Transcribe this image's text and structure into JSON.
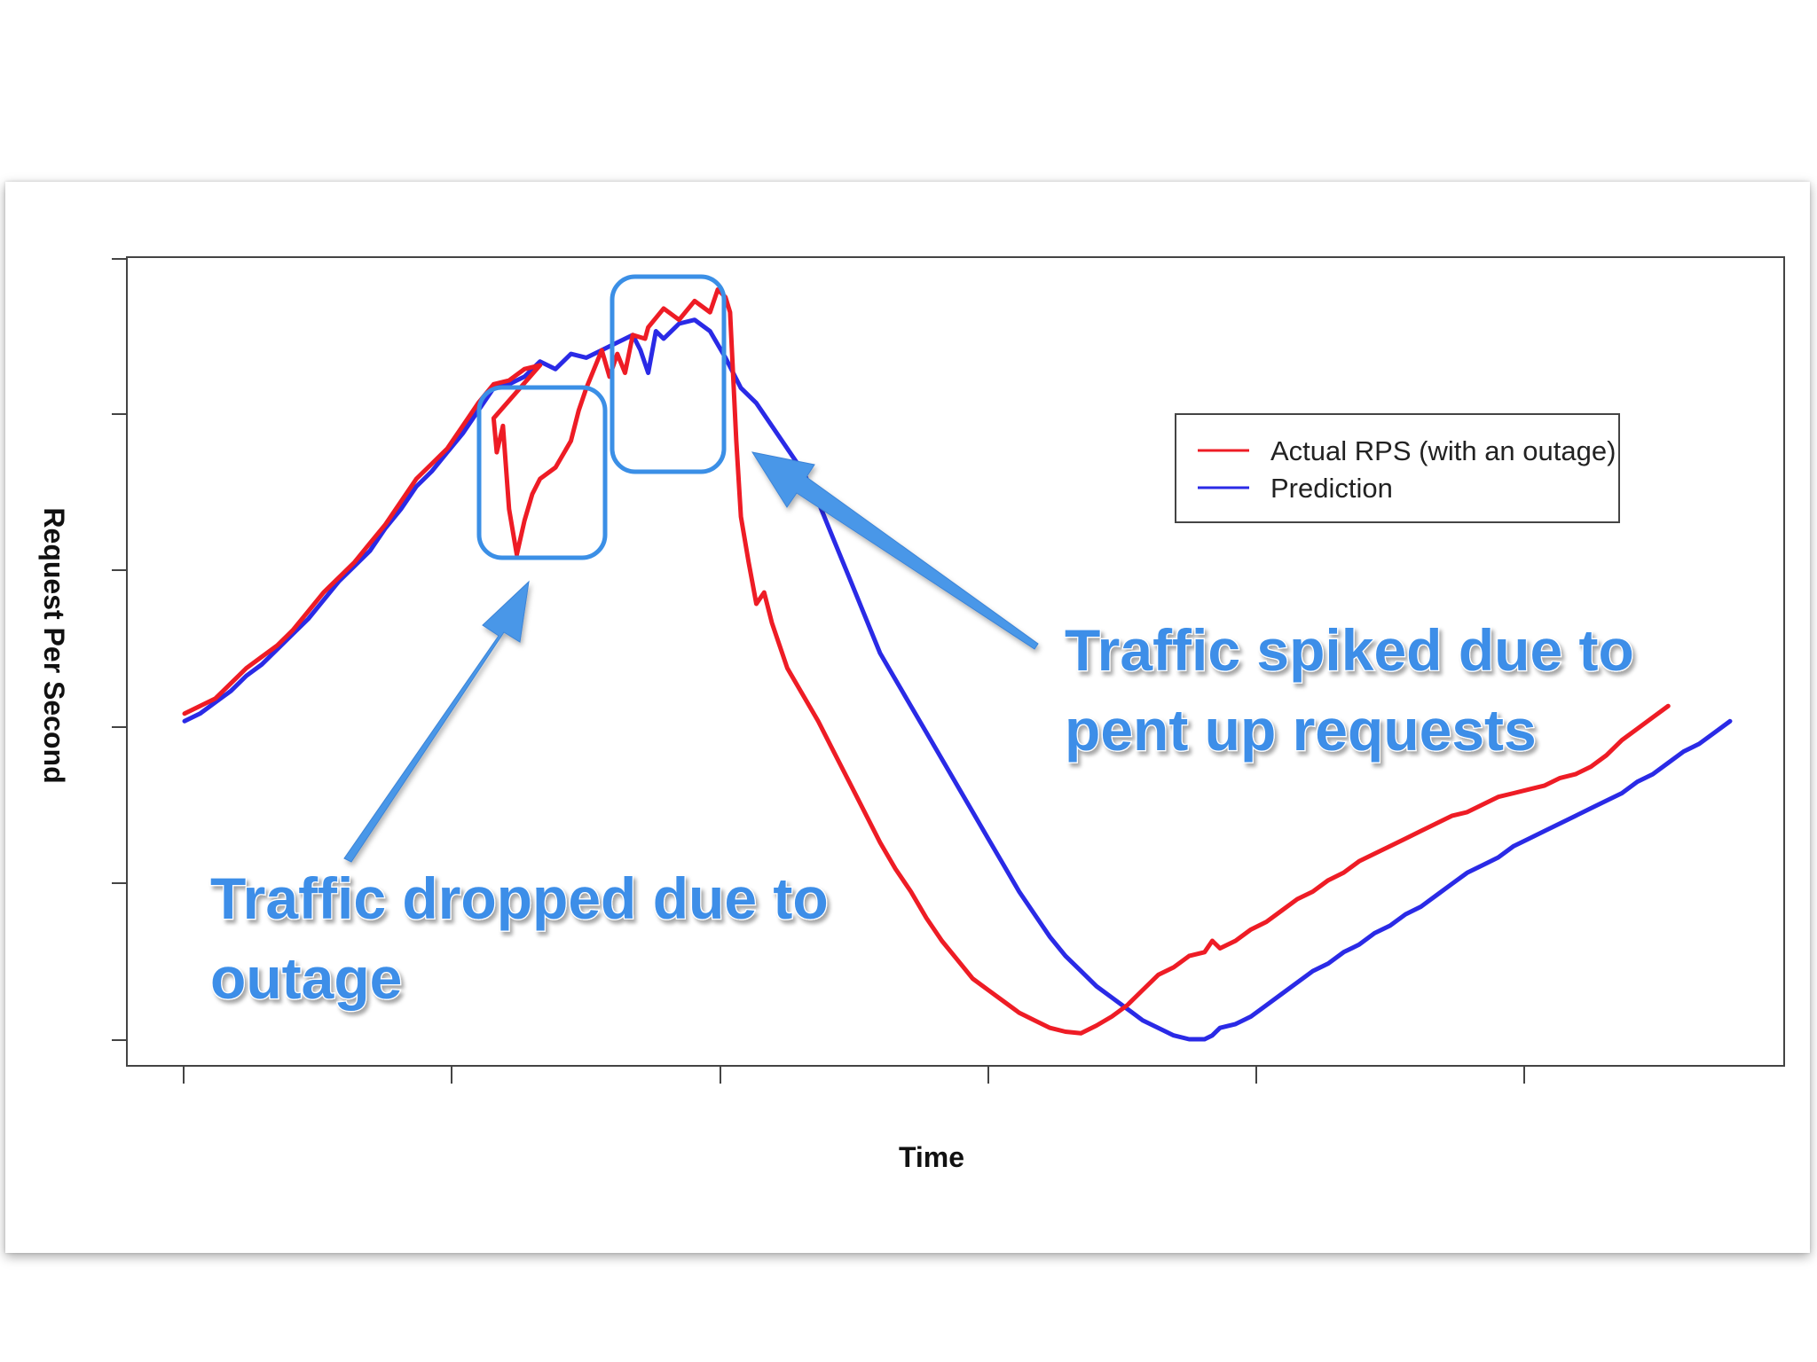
{
  "colors": {
    "actual": "#ee1c25",
    "prediction": "#2a2ae6",
    "callout": "#3b8fe6",
    "callout_text": "#3d8ee8",
    "axis": "#333333"
  },
  "chart_data": {
    "type": "line",
    "title": "",
    "xlabel": "Time",
    "ylabel": "Request Per Second",
    "xlim": [
      0,
      100
    ],
    "ylim": [
      0,
      100
    ],
    "x_ticks": [
      "",
      "",
      "",
      "",
      "",
      ""
    ],
    "y_ticks": [
      "",
      "",
      "",
      "",
      "",
      ""
    ],
    "grid": false,
    "legend": {
      "placement": "top-right"
    },
    "series": [
      {
        "name": "Actual RPS (with an outage)",
        "color": "#ee1c25",
        "points": [
          [
            0,
            43
          ],
          [
            1,
            44
          ],
          [
            2,
            45
          ],
          [
            3,
            47
          ],
          [
            4,
            49
          ],
          [
            5,
            50.5
          ],
          [
            6,
            52
          ],
          [
            7,
            54
          ],
          [
            8,
            56.5
          ],
          [
            9,
            59
          ],
          [
            10,
            61
          ],
          [
            11,
            63
          ],
          [
            12,
            65.5
          ],
          [
            13,
            68
          ],
          [
            14,
            71
          ],
          [
            15,
            74
          ],
          [
            16,
            76
          ],
          [
            17,
            78
          ],
          [
            18,
            81
          ],
          [
            19,
            84
          ],
          [
            20,
            86.5
          ],
          [
            21,
            87
          ],
          [
            22,
            88.5
          ],
          [
            23,
            89
          ],
          [
            20,
            82
          ],
          [
            20.2,
            77.5
          ],
          [
            20.6,
            81
          ],
          [
            21,
            70
          ],
          [
            21.5,
            64
          ],
          [
            22,
            68.5
          ],
          [
            22.5,
            72
          ],
          [
            23,
            74
          ],
          [
            24,
            75.5
          ],
          [
            25,
            79
          ],
          [
            25.5,
            83
          ],
          [
            26,
            86
          ],
          [
            26.5,
            88.5
          ],
          [
            27,
            91
          ],
          [
            27.5,
            87.5
          ],
          [
            28,
            90.5
          ],
          [
            28.5,
            88
          ],
          [
            29,
            93
          ],
          [
            29.8,
            92.5
          ],
          [
            30,
            94
          ],
          [
            31,
            96.5
          ],
          [
            32,
            95
          ],
          [
            33,
            97.5
          ],
          [
            34,
            96
          ],
          [
            34.5,
            99
          ],
          [
            35,
            98
          ],
          [
            35.3,
            96
          ],
          [
            35.7,
            79
          ],
          [
            36,
            69
          ],
          [
            36.5,
            63
          ],
          [
            37,
            57.5
          ],
          [
            37.5,
            59
          ],
          [
            38,
            55
          ],
          [
            38.5,
            52
          ],
          [
            39,
            49
          ],
          [
            40,
            45.5
          ],
          [
            41,
            42
          ],
          [
            42,
            38
          ],
          [
            43,
            34
          ],
          [
            44,
            30
          ],
          [
            45,
            26
          ],
          [
            46,
            22.5
          ],
          [
            47,
            19.5
          ],
          [
            48,
            16
          ],
          [
            49,
            13
          ],
          [
            50,
            10.5
          ],
          [
            51,
            8
          ],
          [
            52,
            6.5
          ],
          [
            53,
            5
          ],
          [
            54,
            3.5
          ],
          [
            55,
            2.5
          ],
          [
            56,
            1.5
          ],
          [
            57,
            1
          ],
          [
            58,
            0.8
          ],
          [
            59,
            1.8
          ],
          [
            60,
            3
          ],
          [
            61,
            4.5
          ],
          [
            62,
            6.5
          ],
          [
            63,
            8.5
          ],
          [
            64,
            9.5
          ],
          [
            65,
            11
          ],
          [
            66,
            11.5
          ],
          [
            66.5,
            13
          ],
          [
            67,
            12
          ],
          [
            68,
            13
          ],
          [
            69,
            14.5
          ],
          [
            70,
            15.5
          ],
          [
            71,
            17
          ],
          [
            72,
            18.5
          ],
          [
            73,
            19.5
          ],
          [
            74,
            21
          ],
          [
            75,
            22
          ],
          [
            76,
            23.5
          ],
          [
            77,
            24.5
          ],
          [
            78,
            25.5
          ],
          [
            79,
            26.5
          ],
          [
            80,
            27.5
          ],
          [
            81,
            28.5
          ],
          [
            82,
            29.5
          ],
          [
            83,
            30
          ],
          [
            84,
            31
          ],
          [
            85,
            32
          ],
          [
            86,
            32.5
          ],
          [
            87,
            33
          ],
          [
            88,
            33.5
          ],
          [
            89,
            34.5
          ],
          [
            90,
            35
          ],
          [
            91,
            36
          ],
          [
            92,
            37.5
          ],
          [
            93,
            39.5
          ],
          [
            94,
            41
          ],
          [
            95,
            42.5
          ],
          [
            96,
            44
          ]
        ]
      },
      {
        "name": "Prediction",
        "color": "#2a2ae6",
        "points": [
          [
            0,
            42
          ],
          [
            1,
            43
          ],
          [
            2,
            44.5
          ],
          [
            3,
            46
          ],
          [
            4,
            48
          ],
          [
            5,
            49.5
          ],
          [
            6,
            51.5
          ],
          [
            7,
            53.5
          ],
          [
            8,
            55.5
          ],
          [
            9,
            58
          ],
          [
            10,
            60.5
          ],
          [
            11,
            62.5
          ],
          [
            12,
            64.5
          ],
          [
            13,
            67.5
          ],
          [
            14,
            70
          ],
          [
            15,
            73
          ],
          [
            16,
            75
          ],
          [
            17,
            77.5
          ],
          [
            18,
            80
          ],
          [
            19,
            83
          ],
          [
            20,
            86
          ],
          [
            21,
            86.5
          ],
          [
            22,
            87.5
          ],
          [
            23,
            89.5
          ],
          [
            24,
            88.5
          ],
          [
            25,
            90.5
          ],
          [
            26,
            90
          ],
          [
            27,
            91
          ],
          [
            28,
            92
          ],
          [
            29,
            93
          ],
          [
            29.5,
            91
          ],
          [
            30,
            88
          ],
          [
            30.5,
            93.5
          ],
          [
            31,
            92.5
          ],
          [
            32,
            94.5
          ],
          [
            33,
            95
          ],
          [
            34,
            93.5
          ],
          [
            35,
            90
          ],
          [
            36,
            86
          ],
          [
            37,
            84
          ],
          [
            38,
            81
          ],
          [
            39,
            78
          ],
          [
            40,
            75
          ],
          [
            41,
            71
          ],
          [
            42,
            66
          ],
          [
            43,
            61
          ],
          [
            44,
            56
          ],
          [
            45,
            51
          ],
          [
            46,
            47.5
          ],
          [
            47,
            44
          ],
          [
            48,
            40.5
          ],
          [
            49,
            37
          ],
          [
            50,
            33.5
          ],
          [
            51,
            30
          ],
          [
            52,
            26.5
          ],
          [
            53,
            23
          ],
          [
            54,
            19.5
          ],
          [
            55,
            16.5
          ],
          [
            56,
            13.5
          ],
          [
            57,
            11
          ],
          [
            58,
            9
          ],
          [
            59,
            7
          ],
          [
            60,
            5.5
          ],
          [
            61,
            4
          ],
          [
            62,
            2.5
          ],
          [
            63,
            1.5
          ],
          [
            64,
            0.5
          ],
          [
            65,
            0
          ],
          [
            66,
            0
          ],
          [
            66.5,
            0.5
          ],
          [
            67,
            1.5
          ],
          [
            68,
            2
          ],
          [
            69,
            3
          ],
          [
            70,
            4.5
          ],
          [
            71,
            6
          ],
          [
            72,
            7.5
          ],
          [
            73,
            9
          ],
          [
            74,
            10
          ],
          [
            75,
            11.5
          ],
          [
            76,
            12.5
          ],
          [
            77,
            14
          ],
          [
            78,
            15
          ],
          [
            79,
            16.5
          ],
          [
            80,
            17.5
          ],
          [
            81,
            19
          ],
          [
            82,
            20.5
          ],
          [
            83,
            22
          ],
          [
            84,
            23
          ],
          [
            85,
            24
          ],
          [
            86,
            25.5
          ],
          [
            87,
            26.5
          ],
          [
            88,
            27.5
          ],
          [
            89,
            28.5
          ],
          [
            90,
            29.5
          ],
          [
            91,
            30.5
          ],
          [
            92,
            31.5
          ],
          [
            93,
            32.5
          ],
          [
            94,
            34
          ],
          [
            95,
            35
          ],
          [
            96,
            36.5
          ],
          [
            97,
            38
          ],
          [
            98,
            39
          ],
          [
            99,
            40.5
          ],
          [
            100,
            42
          ]
        ]
      }
    ],
    "annotations": [
      {
        "label": "Traffic dropped due to outage",
        "lines": [
          "Traffic dropped due to",
          "outage"
        ]
      },
      {
        "label": "Traffic spiked due to pent up requests",
        "lines": [
          "Traffic spiked due to",
          "pent up requests"
        ]
      }
    ]
  }
}
